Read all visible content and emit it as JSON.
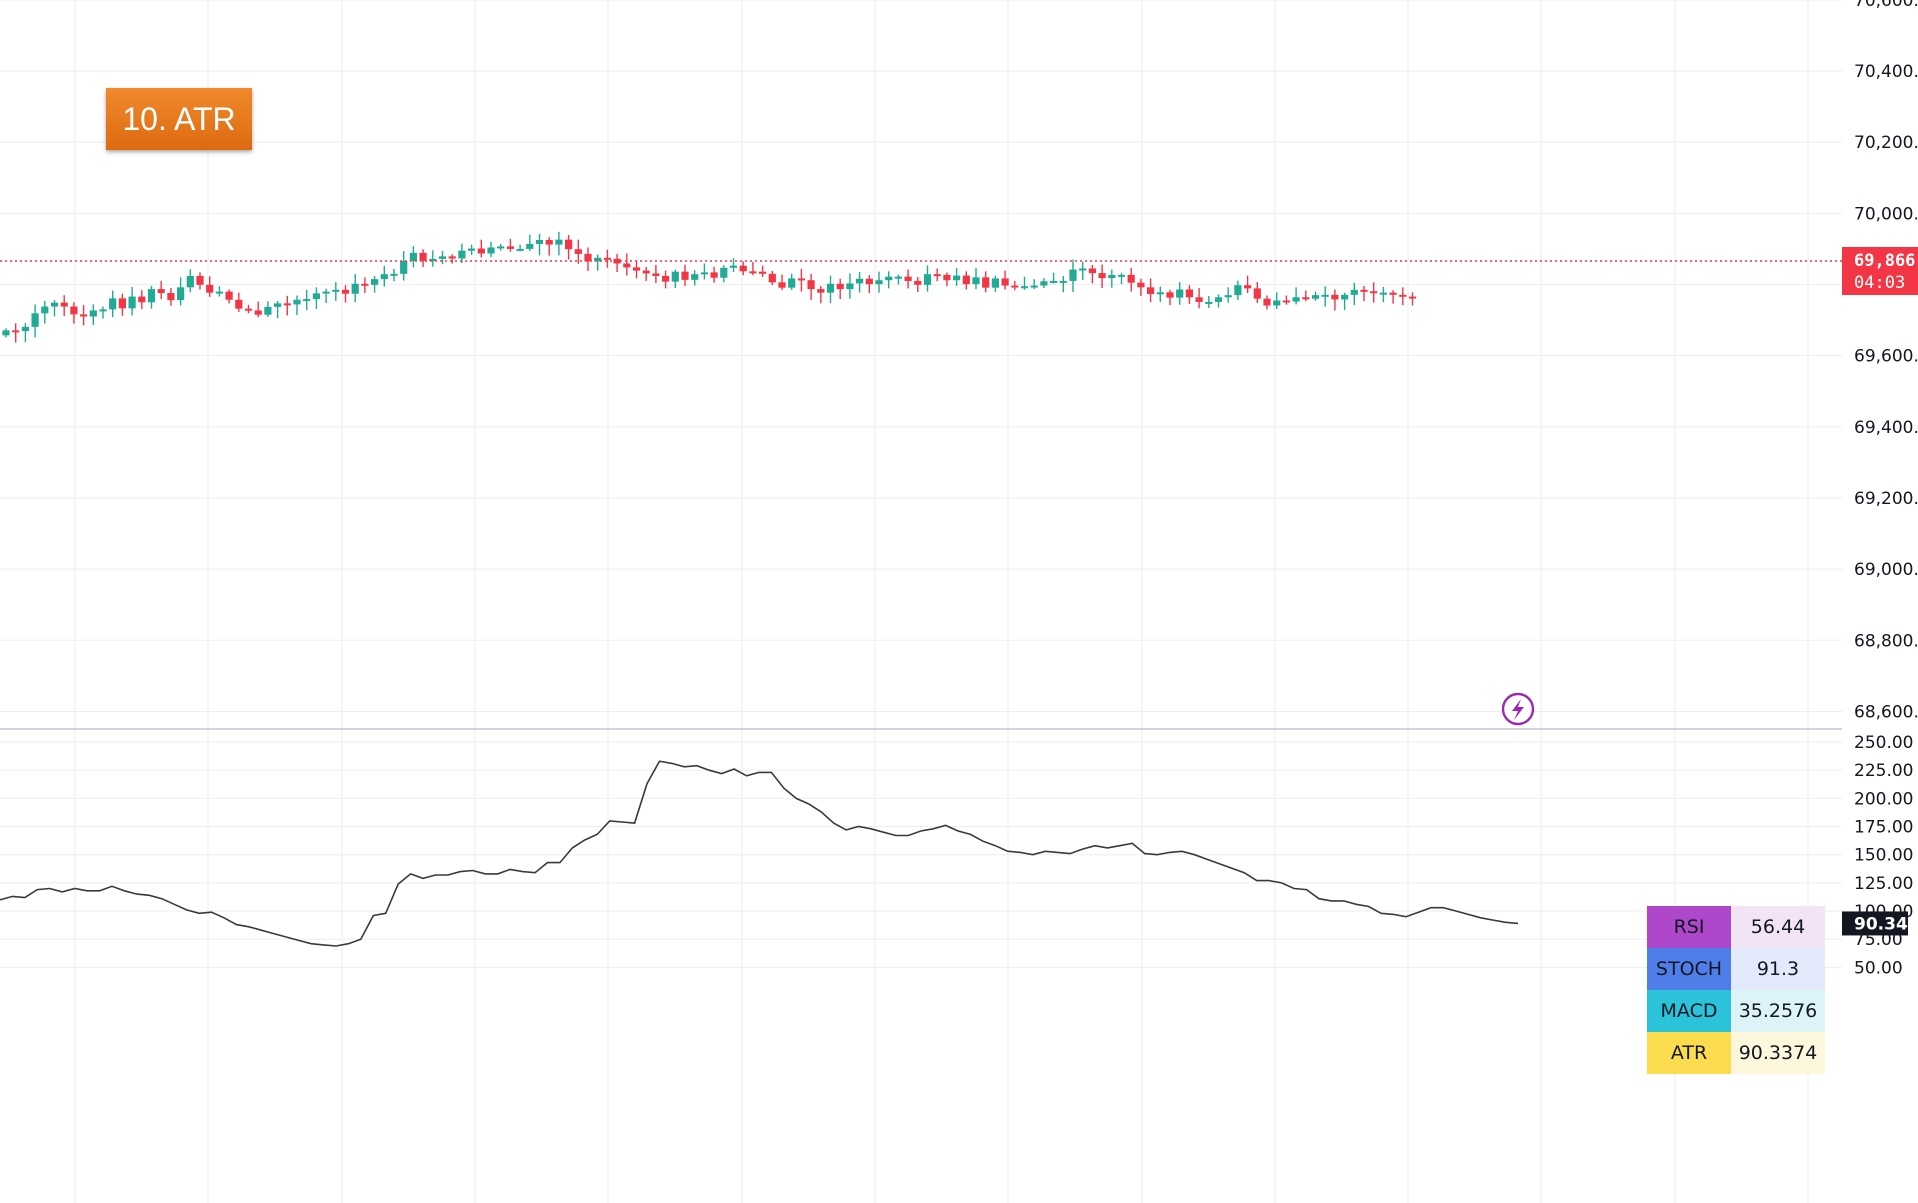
{
  "title_label": "10. ATR",
  "price_axis": {
    "ticks": [
      "70,600.",
      "70,400.",
      "70,200.",
      "70,000.",
      "69,800.",
      "69,600.",
      "69,400.",
      "69,200.",
      "69,000.",
      "68,800.",
      "68,600."
    ],
    "tick_values": [
      70600,
      70400,
      70200,
      70000,
      69800,
      69600,
      69400,
      69200,
      69000,
      68800,
      68600
    ],
    "last_price_label": "69,866.",
    "countdown_label": "04:03",
    "last_price": 69866
  },
  "atr_axis": {
    "ticks": [
      "250.00",
      "225.00",
      "200.00",
      "175.00",
      "150.00",
      "125.00",
      "100.00",
      "75.00",
      "50.00"
    ],
    "tick_values": [
      250,
      225,
      200,
      175,
      150,
      125,
      100,
      75,
      50
    ],
    "last_value_label": "90.34"
  },
  "indicators": [
    {
      "name": "RSI",
      "value": "56.44",
      "name_color": "#ae47c9",
      "value_color": "#f3e4f5"
    },
    {
      "name": "STOCH",
      "value": "91.3",
      "name_color": "#4f7ee9",
      "value_color": "#e2eafb"
    },
    {
      "name": "MACD",
      "value": "35.2576",
      "name_color": "#2bc3da",
      "value_color": "#dcf4f7"
    },
    {
      "name": "ATR",
      "value": "90.3374",
      "name_color": "#fbdc4f",
      "value_color": "#fdf7dc"
    }
  ],
  "colors": {
    "up": "#22ab94",
    "down": "#f23645",
    "atr_line": "#3a3a3a",
    "grid": "#eeeeee",
    "price_line": "#f23645",
    "lightning_icon": "#9c27b0"
  },
  "chart_data": {
    "type": "candlestick",
    "candle_close_deltas": [
      14,
      -2,
      12,
      38,
      19,
      11,
      -11,
      -22,
      -6,
      17,
      3,
      31,
      -28,
      33,
      -16,
      37,
      -11,
      -20,
      36,
      32,
      -25,
      -22,
      3,
      -23,
      -25,
      -5,
      -12,
      22,
      10,
      -3,
      13,
      2,
      16,
      5,
      5,
      -11,
      28,
      -3,
      16,
      14,
      1,
      36,
      23,
      -23,
      6,
      7,
      -6,
      22,
      6,
      -14,
      17,
      3,
      -7,
      0,
      14,
      11,
      -13,
      14,
      -27,
      -13,
      -21,
      10,
      -3,
      -13,
      -11,
      -9,
      -8,
      -7,
      -16,
      28,
      -23,
      16,
      5,
      -15,
      28,
      6,
      -16,
      -1,
      -6,
      -24,
      -15,
      26,
      -5,
      -25,
      -10,
      25,
      -15,
      16,
      13,
      -15,
      11,
      10,
      0,
      -12,
      -11,
      30,
      -2,
      -15,
      13,
      -24,
      19,
      -29,
      26,
      -20,
      -3,
      1,
      2,
      12,
      1,
      0,
      32,
      3,
      -13,
      -14,
      9,
      0,
      -22,
      -13,
      -19,
      5,
      -15,
      23,
      -22,
      -13,
      0,
      13,
      6,
      28,
      -9,
      -29,
      -19,
      14,
      -3,
      12,
      -4,
      10,
      1,
      -13,
      13,
      14,
      -4,
      -5,
      1,
      -6,
      -5,
      -2
    ],
    "ohlc_note_start_price": 69657,
    "series": [
      {
        "name": "ATR",
        "values": [
          110,
          113,
          112,
          119,
          120,
          117,
          120,
          118,
          118,
          122,
          118,
          115,
          114,
          111,
          106,
          101,
          98,
          99,
          94,
          88,
          86,
          83,
          80,
          77,
          74,
          71,
          70,
          69,
          71,
          75,
          96,
          98,
          124,
          133,
          129,
          132,
          132,
          135,
          136,
          133,
          133,
          137,
          135,
          134,
          143,
          143,
          156,
          163,
          168,
          180,
          179,
          178,
          213,
          233,
          231,
          228,
          229,
          225,
          222,
          226,
          220,
          223,
          223,
          209,
          200,
          195,
          188,
          178,
          172,
          175,
          173,
          170,
          167,
          167,
          171,
          173,
          176,
          171,
          168,
          162,
          158,
          153,
          152,
          150,
          153,
          152,
          151,
          155,
          158,
          156,
          158,
          160,
          151,
          150,
          152,
          153,
          150,
          146,
          142,
          138,
          134,
          127,
          127,
          125,
          120,
          119,
          111,
          109,
          109,
          106,
          104,
          98,
          97,
          95,
          99,
          103,
          103,
          100,
          97,
          94,
          92,
          90,
          89
        ]
      }
    ],
    "title": "10. ATR",
    "price_range": [
      68560,
      70660
    ],
    "atr_ylim": [
      50,
      250
    ]
  }
}
